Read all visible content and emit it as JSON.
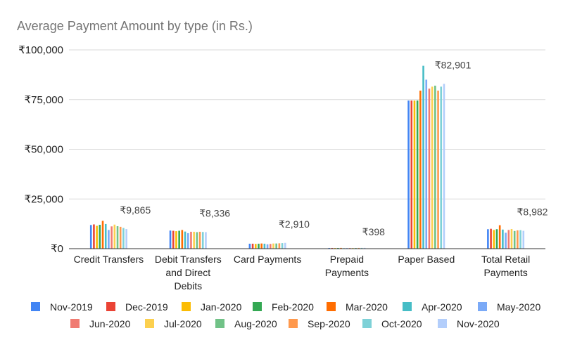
{
  "chart_data": {
    "type": "bar",
    "title": "Average Payment Amount by type (in Rs.)",
    "xlabel": "",
    "ylabel": "",
    "ylim": [
      0,
      100000
    ],
    "yticks": [
      {
        "value": 0,
        "label": "₹0"
      },
      {
        "value": 25000,
        "label": "₹25,000"
      },
      {
        "value": 50000,
        "label": "₹50,000"
      },
      {
        "value": 75000,
        "label": "₹75,000"
      },
      {
        "value": 100000,
        "label": "₹100,000"
      }
    ],
    "categories": [
      [
        "Credit Transfers"
      ],
      [
        "Debit Transfers",
        "and Direct",
        "Debits"
      ],
      [
        "Card Payments"
      ],
      [
        "Prepaid",
        "Payments"
      ],
      [
        "Paper Based"
      ],
      [
        "Total Retail",
        "Payments"
      ]
    ],
    "series": [
      {
        "name": "Nov-2019",
        "color": "#4285f4",
        "values": [
          11900,
          9100,
          2500,
          350,
          74500,
          9800
        ]
      },
      {
        "name": "Dec-2019",
        "color": "#ea4335",
        "values": [
          12200,
          9000,
          2500,
          360,
          74500,
          10000
        ]
      },
      {
        "name": "Jan-2020",
        "color": "#fbbc04",
        "values": [
          11500,
          8800,
          2400,
          340,
          74500,
          9400
        ]
      },
      {
        "name": "Feb-2020",
        "color": "#34a853",
        "values": [
          12000,
          9000,
          2500,
          350,
          74500,
          9800
        ]
      },
      {
        "name": "Mar-2020",
        "color": "#ff6d01",
        "values": [
          14000,
          9400,
          2600,
          380,
          79500,
          11800
        ]
      },
      {
        "name": "Apr-2020",
        "color": "#46bdc6",
        "values": [
          12400,
          8600,
          2500,
          250,
          92000,
          9600
        ]
      },
      {
        "name": "May-2020",
        "color": "#7baaf7",
        "values": [
          9400,
          7800,
          2200,
          300,
          85000,
          8000
        ]
      },
      {
        "name": "Jun-2020",
        "color": "#f07b72",
        "values": [
          11200,
          8500,
          2400,
          330,
          80500,
          9400
        ]
      },
      {
        "name": "Jul-2020",
        "color": "#fcd04f",
        "values": [
          12100,
          8500,
          2600,
          340,
          81500,
          9900
        ]
      },
      {
        "name": "Aug-2020",
        "color": "#71c287",
        "values": [
          11300,
          8300,
          2600,
          350,
          82000,
          8900
        ]
      },
      {
        "name": "Sep-2020",
        "color": "#ff994d",
        "values": [
          11000,
          8500,
          2700,
          370,
          79500,
          9200
        ]
      },
      {
        "name": "Oct-2020",
        "color": "#7ed1d7",
        "values": [
          10400,
          8400,
          2800,
          380,
          81500,
          9300
        ]
      },
      {
        "name": "Nov-2020",
        "color": "#b3cefb",
        "values": [
          9865,
          8336,
          2910,
          398,
          82901,
          8982
        ]
      }
    ],
    "data_labels": [
      {
        "category_index": 0,
        "text": "₹9,865"
      },
      {
        "category_index": 1,
        "text": "₹8,336"
      },
      {
        "category_index": 2,
        "text": "₹2,910"
      },
      {
        "category_index": 3,
        "text": "₹398"
      },
      {
        "category_index": 4,
        "text": "₹82,901"
      },
      {
        "category_index": 5,
        "text": "₹8,982"
      }
    ],
    "legend_position": "bottom",
    "grid": true
  }
}
